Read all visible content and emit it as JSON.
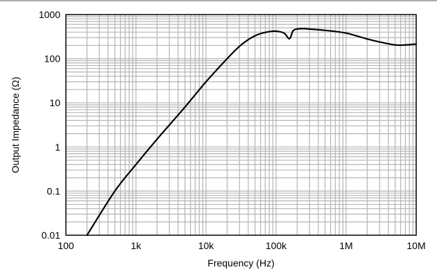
{
  "chart_data": {
    "type": "line",
    "xlabel": "Frequency (Hz)",
    "ylabel": "Output Impedance (Ω)",
    "xscale": "log",
    "yscale": "log",
    "xlim": [
      100,
      10000000
    ],
    "ylim": [
      0.01,
      1000
    ],
    "grid": true,
    "x_tick_labels": [
      "100",
      "1k",
      "10k",
      "100k",
      "1M",
      "10M"
    ],
    "y_tick_labels": [
      "0.01",
      "0.1",
      "1",
      "10",
      "100",
      "1000"
    ],
    "series": [
      {
        "x": [
          200,
          500,
          1000,
          2000,
          5000,
          10000,
          20000,
          30000,
          40000,
          50000,
          60000,
          80000,
          100000,
          130000,
          150000,
          160000,
          175000,
          200000,
          250000,
          300000,
          500000,
          1000000,
          2000000,
          3000000,
          5000000,
          7000000,
          10000000
        ],
        "y": [
          0.01,
          0.1,
          0.4,
          1.5,
          8,
          30,
          100,
          190,
          270,
          330,
          370,
          410,
          420,
          380,
          290,
          300,
          430,
          470,
          480,
          470,
          440,
          380,
          280,
          240,
          205,
          205,
          215
        ]
      }
    ]
  }
}
